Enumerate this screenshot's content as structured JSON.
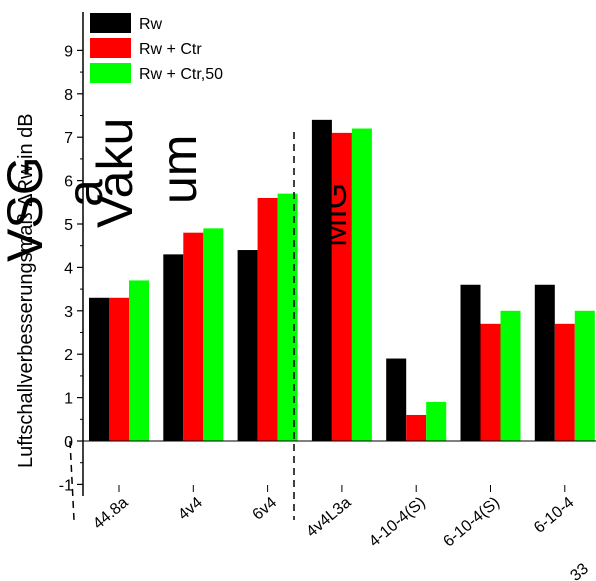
{
  "chart_data": {
    "type": "bar",
    "categories": [
      "44.8a",
      "4v4",
      "6v4",
      "4v4L3a",
      "4-10-4(S)",
      "6-10-4(S)",
      "6-10-4"
    ],
    "series": [
      {
        "name": "Rw",
        "color": "#000000",
        "values": [
          3.3,
          4.3,
          4.4,
          7.4,
          1.9,
          3.6,
          3.6
        ]
      },
      {
        "name": "Rw + Ctr",
        "color": "#ff0000",
        "values": [
          3.3,
          4.8,
          5.6,
          7.1,
          0.6,
          2.7,
          2.7
        ]
      },
      {
        "name": "Rw + Ctr,50",
        "color": "#00ff00",
        "values": [
          3.7,
          4.9,
          5.7,
          7.2,
          0.9,
          3.0,
          3.0
        ]
      }
    ],
    "ylabel": "Luftschallverbesserungsmaß ΔRw in dB",
    "ylim": [
      -1.2,
      9.7
    ],
    "yticks": [
      -1,
      0,
      1,
      2,
      3,
      4,
      5,
      6,
      7,
      8,
      9
    ],
    "legend_position": "top-left",
    "group_labels": [
      "VSG",
      "Vaku",
      "um",
      "a",
      "MIG"
    ],
    "corner_text": "33"
  }
}
